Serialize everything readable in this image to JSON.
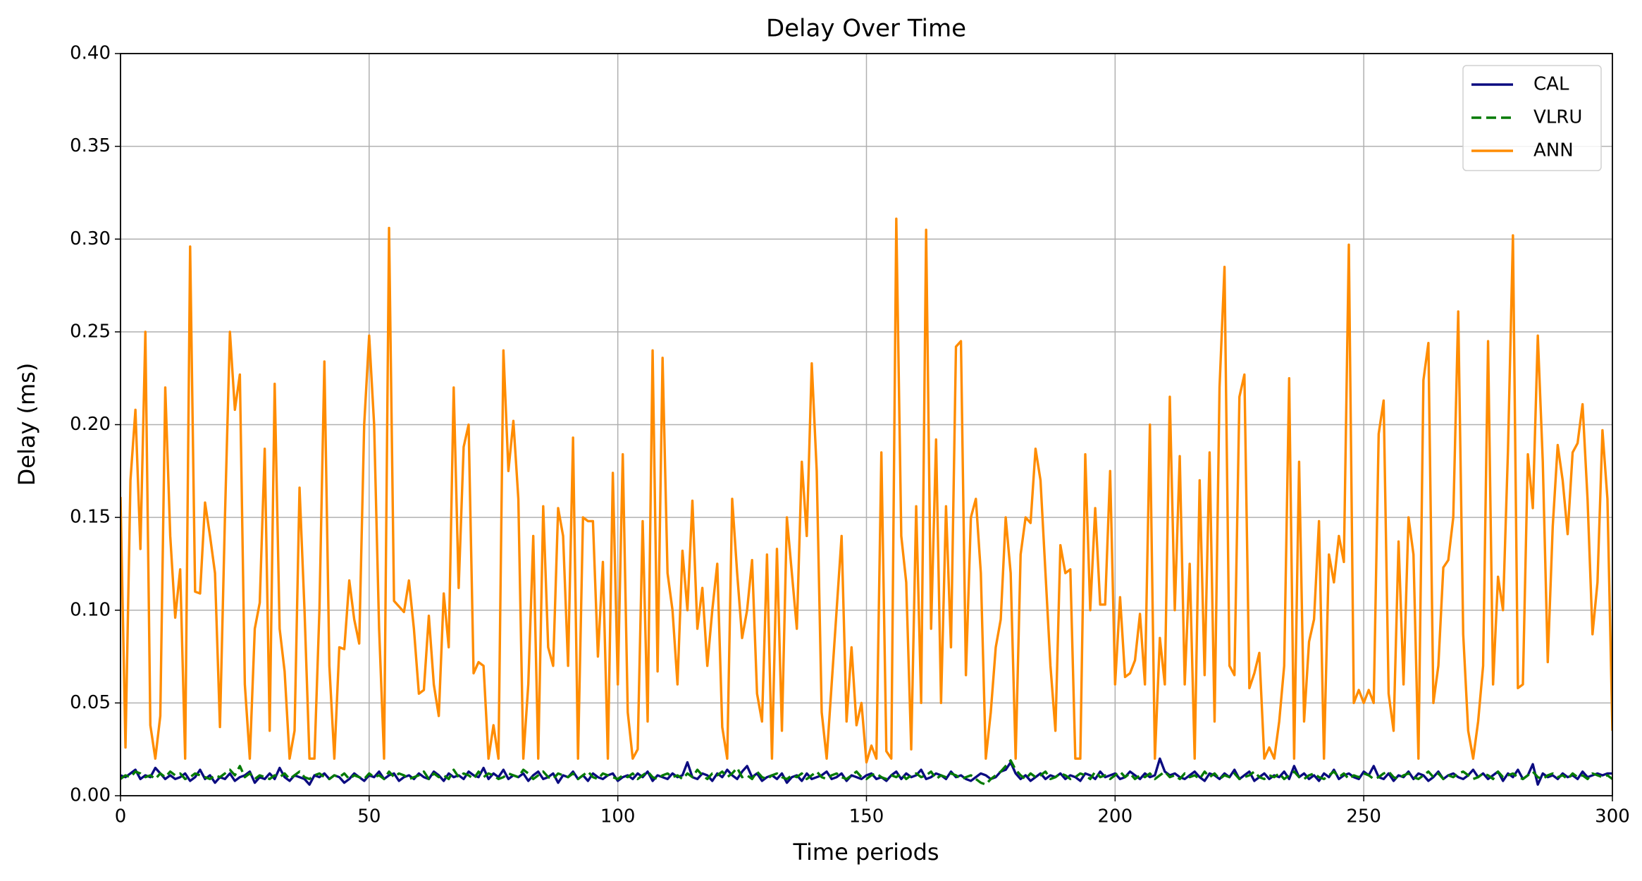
{
  "chart_data": {
    "type": "line",
    "title": "Delay Over Time",
    "x_label": "Time periods",
    "y_label": "Delay (ms)",
    "xlim": [
      0,
      300
    ],
    "ylim": [
      0,
      0.4
    ],
    "xticks": [
      0,
      50,
      100,
      150,
      200,
      250,
      300
    ],
    "yticks": [
      {
        "value": 0,
        "label": "0.00"
      },
      {
        "value": 0.05,
        "label": "0.05"
      },
      {
        "value": 0.1,
        "label": "0.10"
      },
      {
        "value": 0.15,
        "label": "0.15"
      },
      {
        "value": 0.2,
        "label": "0.20"
      },
      {
        "value": 0.25,
        "label": "0.25"
      },
      {
        "value": 0.3,
        "label": "0.30"
      },
      {
        "value": 0.35,
        "label": "0.35"
      },
      {
        "value": 0.4,
        "label": "0.40"
      }
    ],
    "grid": true,
    "legend": "upper right",
    "x": [
      0,
      1,
      2,
      3,
      4,
      5,
      6,
      7,
      8,
      9,
      10,
      11,
      12,
      13,
      14,
      15,
      16,
      17,
      18,
      19,
      20,
      21,
      22,
      23,
      24,
      25,
      26,
      27,
      28,
      29,
      30,
      31,
      32,
      33,
      34,
      35,
      36,
      37,
      38,
      39,
      40,
      41,
      42,
      43,
      44,
      45,
      46,
      47,
      48,
      49,
      50,
      51,
      52,
      53,
      54,
      55,
      56,
      57,
      58,
      59,
      60,
      61,
      62,
      63,
      64,
      65,
      66,
      67,
      68,
      69,
      70,
      71,
      72,
      73,
      74,
      75,
      76,
      77,
      78,
      79,
      80,
      81,
      82,
      83,
      84,
      85,
      86,
      87,
      88,
      89,
      90,
      91,
      92,
      93,
      94,
      95,
      96,
      97,
      98,
      99,
      100,
      101,
      102,
      103,
      104,
      105,
      106,
      107,
      108,
      109,
      110,
      111,
      112,
      113,
      114,
      115,
      116,
      117,
      118,
      119,
      120,
      121,
      122,
      123,
      124,
      125,
      126,
      127,
      128,
      129,
      130,
      131,
      132,
      133,
      134,
      135,
      136,
      137,
      138,
      139,
      140,
      141,
      142,
      143,
      144,
      145,
      146,
      147,
      148,
      149,
      150,
      151,
      152,
      153,
      154,
      155,
      156,
      157,
      158,
      159,
      160,
      161,
      162,
      163,
      164,
      165,
      166,
      167,
      168,
      169,
      170,
      171,
      172,
      173,
      174,
      175,
      176,
      177,
      178,
      179,
      180,
      181,
      182,
      183,
      184,
      185,
      186,
      187,
      188,
      189,
      190,
      191,
      192,
      193,
      194,
      195,
      196,
      197,
      198,
      199,
      200,
      201,
      202,
      203,
      204,
      205,
      206,
      207,
      208,
      209,
      210,
      211,
      212,
      213,
      214,
      215,
      216,
      217,
      218,
      219,
      220,
      221,
      222,
      223,
      224,
      225,
      226,
      227,
      228,
      229,
      230,
      231,
      232,
      233,
      234,
      235,
      236,
      237,
      238,
      239,
      240,
      241,
      242,
      243,
      244,
      245,
      246,
      247,
      248,
      249,
      250,
      251,
      252,
      253,
      254,
      255,
      256,
      257,
      258,
      259,
      260,
      261,
      262,
      263,
      264,
      265,
      266,
      267,
      268,
      269,
      270,
      271,
      272,
      273,
      274,
      275,
      276,
      277,
      278,
      279,
      280,
      281,
      282,
      283,
      284,
      285,
      286,
      287,
      288,
      289,
      290,
      291,
      292,
      293,
      294,
      295,
      296,
      297,
      298,
      299,
      300
    ],
    "series": [
      {
        "name": "CAL",
        "color": "#0b0b80",
        "linestyle": "solid",
        "values": [
          0.011,
          0.01,
          0.012,
          0.014,
          0.009,
          0.011,
          0.01,
          0.015,
          0.012,
          0.009,
          0.011,
          0.009,
          0.01,
          0.012,
          0.008,
          0.01,
          0.014,
          0.009,
          0.011,
          0.007,
          0.01,
          0.009,
          0.012,
          0.008,
          0.01,
          0.011,
          0.013,
          0.007,
          0.01,
          0.009,
          0.012,
          0.009,
          0.015,
          0.01,
          0.008,
          0.011,
          0.01,
          0.009,
          0.006,
          0.011,
          0.01,
          0.012,
          0.009,
          0.011,
          0.01,
          0.007,
          0.009,
          0.012,
          0.01,
          0.008,
          0.011,
          0.01,
          0.013,
          0.009,
          0.011,
          0.012,
          0.008,
          0.01,
          0.011,
          0.009,
          0.012,
          0.01,
          0.009,
          0.013,
          0.011,
          0.008,
          0.012,
          0.01,
          0.011,
          0.009,
          0.013,
          0.011,
          0.01,
          0.015,
          0.009,
          0.012,
          0.01,
          0.014,
          0.009,
          0.011,
          0.01,
          0.012,
          0.008,
          0.011,
          0.013,
          0.009,
          0.01,
          0.012,
          0.007,
          0.011,
          0.01,
          0.013,
          0.009,
          0.011,
          0.008,
          0.012,
          0.01,
          0.009,
          0.011,
          0.012,
          0.008,
          0.01,
          0.011,
          0.009,
          0.012,
          0.01,
          0.013,
          0.008,
          0.011,
          0.01,
          0.009,
          0.012,
          0.01,
          0.011,
          0.018,
          0.01,
          0.009,
          0.012,
          0.011,
          0.008,
          0.012,
          0.01,
          0.014,
          0.011,
          0.009,
          0.013,
          0.016,
          0.01,
          0.012,
          0.008,
          0.01,
          0.011,
          0.009,
          0.012,
          0.007,
          0.01,
          0.011,
          0.008,
          0.012,
          0.009,
          0.01,
          0.011,
          0.013,
          0.009,
          0.01,
          0.012,
          0.008,
          0.011,
          0.01,
          0.009,
          0.011,
          0.012,
          0.009,
          0.01,
          0.008,
          0.011,
          0.013,
          0.009,
          0.012,
          0.01,
          0.011,
          0.014,
          0.009,
          0.01,
          0.012,
          0.011,
          0.009,
          0.013,
          0.01,
          0.011,
          0.009,
          0.008,
          0.01,
          0.012,
          0.011,
          0.009,
          0.01,
          0.013,
          0.014,
          0.018,
          0.012,
          0.009,
          0.011,
          0.008,
          0.01,
          0.012,
          0.009,
          0.011,
          0.01,
          0.012,
          0.009,
          0.011,
          0.01,
          0.008,
          0.012,
          0.011,
          0.009,
          0.013,
          0.01,
          0.011,
          0.012,
          0.009,
          0.01,
          0.013,
          0.011,
          0.009,
          0.012,
          0.01,
          0.011,
          0.02,
          0.013,
          0.011,
          0.012,
          0.01,
          0.009,
          0.011,
          0.013,
          0.01,
          0.008,
          0.012,
          0.011,
          0.009,
          0.012,
          0.01,
          0.014,
          0.009,
          0.011,
          0.013,
          0.008,
          0.01,
          0.012,
          0.009,
          0.011,
          0.01,
          0.013,
          0.009,
          0.016,
          0.01,
          0.012,
          0.009,
          0.011,
          0.008,
          0.012,
          0.01,
          0.014,
          0.009,
          0.011,
          0.012,
          0.01,
          0.009,
          0.013,
          0.011,
          0.016,
          0.01,
          0.009,
          0.012,
          0.008,
          0.011,
          0.01,
          0.013,
          0.009,
          0.012,
          0.011,
          0.008,
          0.01,
          0.013,
          0.009,
          0.011,
          0.012,
          0.01,
          0.009,
          0.011,
          0.014,
          0.01,
          0.012,
          0.009,
          0.011,
          0.013,
          0.008,
          0.012,
          0.01,
          0.014,
          0.009,
          0.011,
          0.017,
          0.006,
          0.012,
          0.01,
          0.011,
          0.009,
          0.012,
          0.01,
          0.011,
          0.009,
          0.013,
          0.01,
          0.011,
          0.012,
          0.011,
          0.012,
          0.012
        ]
      },
      {
        "name": "VLRU",
        "color": "#047a04",
        "linestyle": "dashed",
        "values": [
          0.009,
          0.011,
          0.01,
          0.013,
          0.012,
          0.01,
          0.011,
          0.009,
          0.012,
          0.01,
          0.013,
          0.011,
          0.012,
          0.009,
          0.01,
          0.012,
          0.011,
          0.01,
          0.009,
          0.011,
          0.01,
          0.012,
          0.014,
          0.011,
          0.016,
          0.01,
          0.012,
          0.009,
          0.011,
          0.01,
          0.009,
          0.011,
          0.01,
          0.012,
          0.009,
          0.011,
          0.013,
          0.01,
          0.009,
          0.011,
          0.012,
          0.01,
          0.009,
          0.011,
          0.01,
          0.012,
          0.009,
          0.011,
          0.01,
          0.009,
          0.012,
          0.01,
          0.011,
          0.009,
          0.013,
          0.01,
          0.012,
          0.011,
          0.009,
          0.01,
          0.011,
          0.013,
          0.009,
          0.012,
          0.01,
          0.011,
          0.009,
          0.014,
          0.01,
          0.012,
          0.011,
          0.009,
          0.013,
          0.01,
          0.012,
          0.011,
          0.009,
          0.01,
          0.012,
          0.011,
          0.01,
          0.014,
          0.012,
          0.009,
          0.011,
          0.013,
          0.01,
          0.009,
          0.012,
          0.011,
          0.01,
          0.012,
          0.009,
          0.011,
          0.013,
          0.01,
          0.009,
          0.012,
          0.011,
          0.01,
          0.009,
          0.011,
          0.01,
          0.012,
          0.009,
          0.011,
          0.013,
          0.01,
          0.009,
          0.011,
          0.012,
          0.01,
          0.011,
          0.009,
          0.012,
          0.01,
          0.014,
          0.011,
          0.009,
          0.012,
          0.011,
          0.013,
          0.01,
          0.012,
          0.015,
          0.01,
          0.011,
          0.009,
          0.013,
          0.01,
          0.009,
          0.011,
          0.012,
          0.01,
          0.009,
          0.011,
          0.01,
          0.012,
          0.009,
          0.011,
          0.013,
          0.01,
          0.009,
          0.011,
          0.012,
          0.01,
          0.009,
          0.011,
          0.013,
          0.01,
          0.009,
          0.011,
          0.012,
          0.01,
          0.009,
          0.011,
          0.01,
          0.012,
          0.009,
          0.011,
          0.012,
          0.01,
          0.011,
          0.013,
          0.009,
          0.011,
          0.01,
          0.012,
          0.011,
          0.009,
          0.01,
          0.011,
          0.009,
          0.007,
          0.006,
          0.009,
          0.011,
          0.013,
          0.016,
          0.019,
          0.014,
          0.011,
          0.009,
          0.012,
          0.01,
          0.011,
          0.013,
          0.009,
          0.01,
          0.012,
          0.011,
          0.009,
          0.01,
          0.012,
          0.011,
          0.009,
          0.013,
          0.01,
          0.011,
          0.009,
          0.011,
          0.013,
          0.01,
          0.012,
          0.009,
          0.011,
          0.01,
          0.012,
          0.009,
          0.011,
          0.013,
          0.01,
          0.011,
          0.009,
          0.012,
          0.01,
          0.011,
          0.009,
          0.013,
          0.01,
          0.012,
          0.009,
          0.011,
          0.01,
          0.012,
          0.009,
          0.01,
          0.011,
          0.013,
          0.01,
          0.009,
          0.011,
          0.01,
          0.012,
          0.009,
          0.011,
          0.013,
          0.01,
          0.009,
          0.011,
          0.012,
          0.01,
          0.009,
          0.011,
          0.013,
          0.01,
          0.012,
          0.009,
          0.011,
          0.01,
          0.012,
          0.011,
          0.009,
          0.01,
          0.012,
          0.013,
          0.01,
          0.009,
          0.011,
          0.012,
          0.01,
          0.009,
          0.011,
          0.013,
          0.01,
          0.012,
          0.009,
          0.011,
          0.01,
          0.012,
          0.013,
          0.011,
          0.009,
          0.01,
          0.012,
          0.011,
          0.009,
          0.013,
          0.01,
          0.011,
          0.012,
          0.01,
          0.009,
          0.011,
          0.013,
          0.01,
          0.009,
          0.011,
          0.012,
          0.01,
          0.011,
          0.009,
          0.012,
          0.01,
          0.011,
          0.009,
          0.012,
          0.011,
          0.01,
          0.011,
          0.009
        ]
      },
      {
        "name": "ANN",
        "color": "#ff8c00",
        "linestyle": "solid",
        "values": [
          0.161,
          0.026,
          0.17,
          0.208,
          0.133,
          0.25,
          0.038,
          0.02,
          0.043,
          0.22,
          0.14,
          0.096,
          0.122,
          0.02,
          0.296,
          0.11,
          0.109,
          0.158,
          0.14,
          0.12,
          0.037,
          0.15,
          0.25,
          0.208,
          0.227,
          0.06,
          0.02,
          0.09,
          0.104,
          0.187,
          0.035,
          0.222,
          0.09,
          0.067,
          0.02,
          0.035,
          0.166,
          0.1,
          0.02,
          0.02,
          0.1,
          0.234,
          0.07,
          0.02,
          0.08,
          0.079,
          0.116,
          0.095,
          0.082,
          0.2,
          0.248,
          0.2,
          0.09,
          0.02,
          0.306,
          0.105,
          0.102,
          0.099,
          0.116,
          0.09,
          0.055,
          0.057,
          0.097,
          0.06,
          0.043,
          0.109,
          0.08,
          0.22,
          0.112,
          0.188,
          0.2,
          0.066,
          0.072,
          0.07,
          0.02,
          0.038,
          0.02,
          0.24,
          0.175,
          0.202,
          0.16,
          0.02,
          0.06,
          0.14,
          0.02,
          0.156,
          0.08,
          0.07,
          0.155,
          0.14,
          0.07,
          0.193,
          0.02,
          0.15,
          0.148,
          0.148,
          0.075,
          0.126,
          0.02,
          0.174,
          0.06,
          0.184,
          0.045,
          0.02,
          0.025,
          0.148,
          0.04,
          0.24,
          0.067,
          0.236,
          0.12,
          0.1,
          0.06,
          0.132,
          0.1,
          0.159,
          0.09,
          0.112,
          0.07,
          0.1,
          0.125,
          0.037,
          0.02,
          0.16,
          0.12,
          0.085,
          0.1,
          0.127,
          0.055,
          0.04,
          0.13,
          0.02,
          0.133,
          0.035,
          0.15,
          0.12,
          0.09,
          0.18,
          0.14,
          0.233,
          0.175,
          0.045,
          0.02,
          0.06,
          0.1,
          0.14,
          0.04,
          0.08,
          0.038,
          0.05,
          0.018,
          0.027,
          0.02,
          0.185,
          0.024,
          0.02,
          0.311,
          0.14,
          0.115,
          0.025,
          0.156,
          0.05,
          0.305,
          0.09,
          0.192,
          0.05,
          0.156,
          0.08,
          0.242,
          0.245,
          0.065,
          0.15,
          0.16,
          0.12,
          0.02,
          0.045,
          0.08,
          0.095,
          0.15,
          0.12,
          0.02,
          0.13,
          0.15,
          0.147,
          0.187,
          0.17,
          0.12,
          0.07,
          0.035,
          0.135,
          0.12,
          0.122,
          0.02,
          0.02,
          0.184,
          0.1,
          0.155,
          0.103,
          0.103,
          0.175,
          0.06,
          0.107,
          0.064,
          0.066,
          0.073,
          0.098,
          0.06,
          0.2,
          0.02,
          0.085,
          0.06,
          0.215,
          0.1,
          0.183,
          0.06,
          0.125,
          0.02,
          0.17,
          0.065,
          0.185,
          0.04,
          0.22,
          0.285,
          0.07,
          0.065,
          0.215,
          0.227,
          0.058,
          0.066,
          0.077,
          0.02,
          0.026,
          0.02,
          0.04,
          0.07,
          0.225,
          0.02,
          0.18,
          0.04,
          0.083,
          0.095,
          0.148,
          0.02,
          0.13,
          0.115,
          0.14,
          0.126,
          0.297,
          0.05,
          0.057,
          0.05,
          0.057,
          0.05,
          0.195,
          0.213,
          0.055,
          0.035,
          0.137,
          0.06,
          0.15,
          0.13,
          0.02,
          0.224,
          0.244,
          0.05,
          0.07,
          0.123,
          0.127,
          0.15,
          0.261,
          0.087,
          0.035,
          0.02,
          0.04,
          0.07,
          0.245,
          0.06,
          0.118,
          0.1,
          0.186,
          0.302,
          0.058,
          0.06,
          0.184,
          0.155,
          0.248,
          0.18,
          0.072,
          0.145,
          0.189,
          0.17,
          0.141,
          0.185,
          0.19,
          0.211,
          0.16,
          0.087,
          0.115,
          0.197,
          0.16,
          0.035
        ]
      }
    ]
  }
}
